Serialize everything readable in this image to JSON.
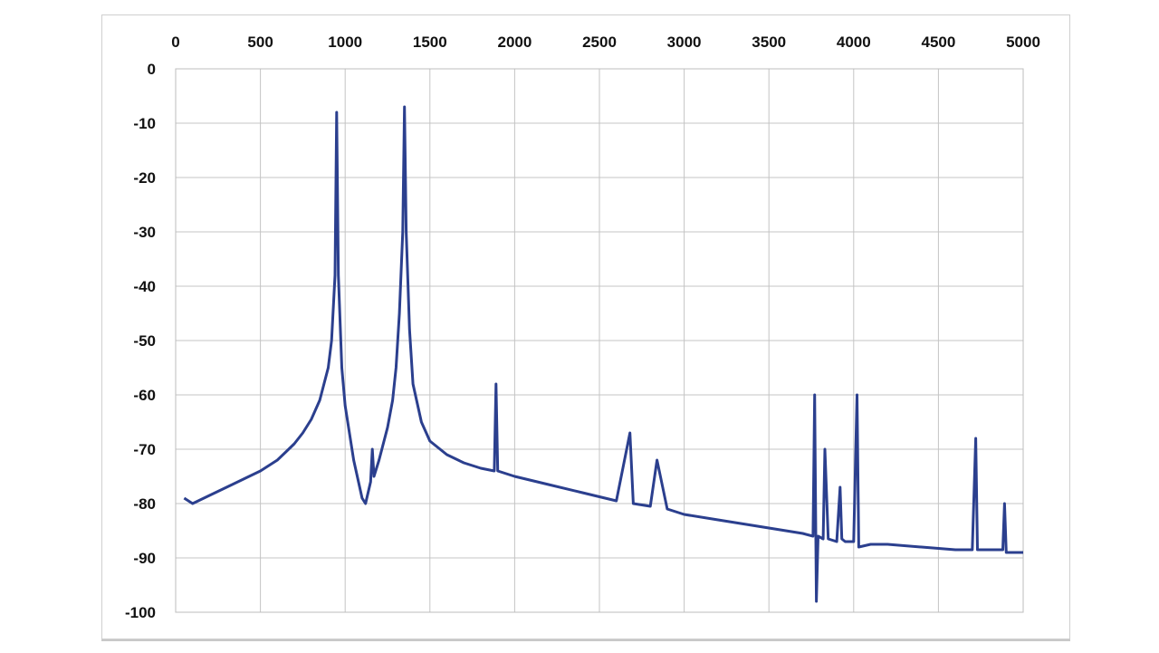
{
  "chart_data": {
    "type": "line",
    "title": "",
    "xlabel": "",
    "ylabel": "",
    "xlim": [
      0,
      5000
    ],
    "ylim": [
      -100,
      0
    ],
    "x_axis_position": "top",
    "grid": true,
    "legend": "none",
    "x_ticks": [
      0,
      500,
      1000,
      1500,
      2000,
      2500,
      3000,
      3500,
      4000,
      4500,
      5000
    ],
    "y_ticks": [
      0,
      -10,
      -20,
      -30,
      -40,
      -50,
      -60,
      -70,
      -80,
      -90,
      -100
    ],
    "series": [
      {
        "color": "#2b3f8e",
        "x": [
          50,
          100,
          200,
          300,
          400,
          500,
          600,
          650,
          700,
          750,
          800,
          850,
          900,
          920,
          940,
          950,
          960,
          980,
          1000,
          1050,
          1100,
          1120,
          1150,
          1160,
          1170,
          1200,
          1250,
          1280,
          1300,
          1320,
          1340,
          1350,
          1360,
          1380,
          1400,
          1450,
          1500,
          1600,
          1700,
          1800,
          1880,
          1890,
          1900,
          2000,
          2200,
          2400,
          2600,
          2680,
          2700,
          2800,
          2840,
          2900,
          3000,
          3200,
          3400,
          3500,
          3600,
          3700,
          3760,
          3770,
          3780,
          3790,
          3820,
          3830,
          3850,
          3900,
          3920,
          3930,
          3950,
          4000,
          4020,
          4030,
          4100,
          4200,
          4400,
          4600,
          4700,
          4720,
          4730,
          4800,
          4880,
          4890,
          4900,
          5000
        ],
        "y": [
          -79,
          -80,
          -78.5,
          -77,
          -75.5,
          -74,
          -72,
          -70.5,
          -69,
          -67,
          -64.5,
          -61,
          -55,
          -50,
          -38,
          -8,
          -38,
          -55,
          -62,
          -72,
          -79,
          -80,
          -76,
          -70,
          -75,
          -72,
          -66,
          -61,
          -55,
          -45,
          -30,
          -7,
          -30,
          -48,
          -58,
          -65,
          -68.5,
          -71,
          -72.5,
          -73.5,
          -74,
          -58,
          -74,
          -75,
          -76.5,
          -78,
          -79.5,
          -67,
          -80,
          -80.5,
          -72,
          -81,
          -82,
          -83,
          -84,
          -84.5,
          -85,
          -85.5,
          -86,
          -60,
          -98,
          -86,
          -86.5,
          -70,
          -86.5,
          -87,
          -77,
          -86.5,
          -87,
          -87,
          -60,
          -88,
          -87.5,
          -87.5,
          -88,
          -88.5,
          -88.5,
          -68,
          -88.5,
          -88.5,
          -88.5,
          -80,
          -89,
          -89
        ]
      }
    ]
  }
}
